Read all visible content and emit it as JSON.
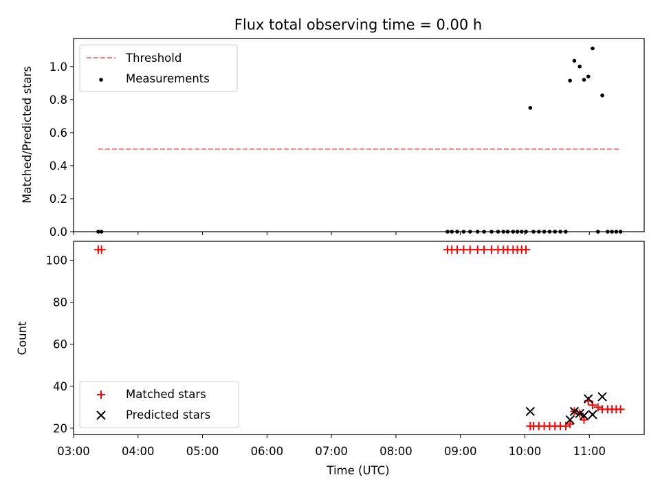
{
  "chart_data": [
    {
      "type": "scatter",
      "title": "Flux total observing time = 0.00 h",
      "xlabel": "",
      "ylabel": "Matched/Predicted stars",
      "ylim": [
        0,
        1.17
      ],
      "yticks": [
        "0.0",
        "0.2",
        "0.4",
        "0.6",
        "0.8",
        "1.0"
      ],
      "grid": false,
      "legend_position": "top-left",
      "threshold": {
        "name": "Threshold",
        "value": 0.5,
        "x_range": [
          "03:23",
          "11:28"
        ],
        "color": "#ff7f7f"
      },
      "series": [
        {
          "name": "Measurements",
          "color": "#000000",
          "marker": "dot",
          "x": [
            "03:23",
            "03:26",
            "08:48",
            "08:52",
            "08:57",
            "09:03",
            "09:09",
            "09:16",
            "09:22",
            "09:29",
            "09:35",
            "09:40",
            "09:44",
            "09:49",
            "09:53",
            "09:57",
            "10:01",
            "10:05",
            "10:08",
            "10:13",
            "10:18",
            "10:23",
            "10:28",
            "10:33",
            "10:38",
            "10:42",
            "10:46",
            "10:51",
            "10:55",
            "10:59",
            "11:03",
            "11:08",
            "11:12",
            "11:17",
            "11:21",
            "11:25",
            "11:29"
          ],
          "y": [
            0,
            0,
            0,
            0,
            0,
            0,
            0,
            0,
            0,
            0,
            0,
            0,
            0,
            0,
            0,
            0,
            0,
            0.75,
            0,
            0,
            0,
            0,
            0,
            0,
            0,
            0.915,
            1.035,
            1.0,
            0.92,
            0.94,
            1.11,
            0,
            0.825,
            0,
            0,
            0,
            0
          ]
        }
      ]
    },
    {
      "type": "scatter",
      "xlabel": "Time (UTC)",
      "ylabel": "Count",
      "ylim": [
        17,
        109
      ],
      "yticks": [
        "20",
        "40",
        "60",
        "80",
        "100"
      ],
      "xticks": [
        "03:00",
        "04:00",
        "05:00",
        "06:00",
        "07:00",
        "08:00",
        "09:00",
        "10:00",
        "11:00"
      ],
      "xlim": [
        "03:00",
        "11:51"
      ],
      "grid": false,
      "legend_position": "bottom-left",
      "series": [
        {
          "name": "Matched stars",
          "color": "#ff0000",
          "marker": "plus",
          "x": [
            "03:23",
            "03:26",
            "08:48",
            "08:52",
            "08:57",
            "09:03",
            "09:09",
            "09:16",
            "09:22",
            "09:29",
            "09:35",
            "09:40",
            "09:44",
            "09:49",
            "09:53",
            "09:57",
            "10:01",
            "10:05",
            "10:08",
            "10:13",
            "10:18",
            "10:23",
            "10:28",
            "10:33",
            "10:38",
            "10:42",
            "10:46",
            "10:51",
            "10:55",
            "10:59",
            "11:03",
            "11:08",
            "11:12",
            "11:17",
            "11:21",
            "11:25",
            "11:29"
          ],
          "y": [
            105,
            105,
            105,
            105,
            105,
            105,
            105,
            105,
            105,
            105,
            105,
            105,
            105,
            105,
            105,
            105,
            105,
            21,
            21,
            21,
            21,
            21,
            21,
            21,
            21,
            22,
            28,
            27,
            24,
            33,
            31,
            30,
            29,
            29,
            29,
            29,
            29
          ]
        },
        {
          "name": "Predicted stars",
          "color": "#000000",
          "marker": "x",
          "x": [
            "10:05",
            "10:42",
            "10:46",
            "10:51",
            "10:55",
            "10:59",
            "11:03",
            "11:12"
          ],
          "y": [
            28,
            24,
            28,
            27,
            26,
            34,
            26.5,
            35
          ]
        }
      ]
    }
  ]
}
